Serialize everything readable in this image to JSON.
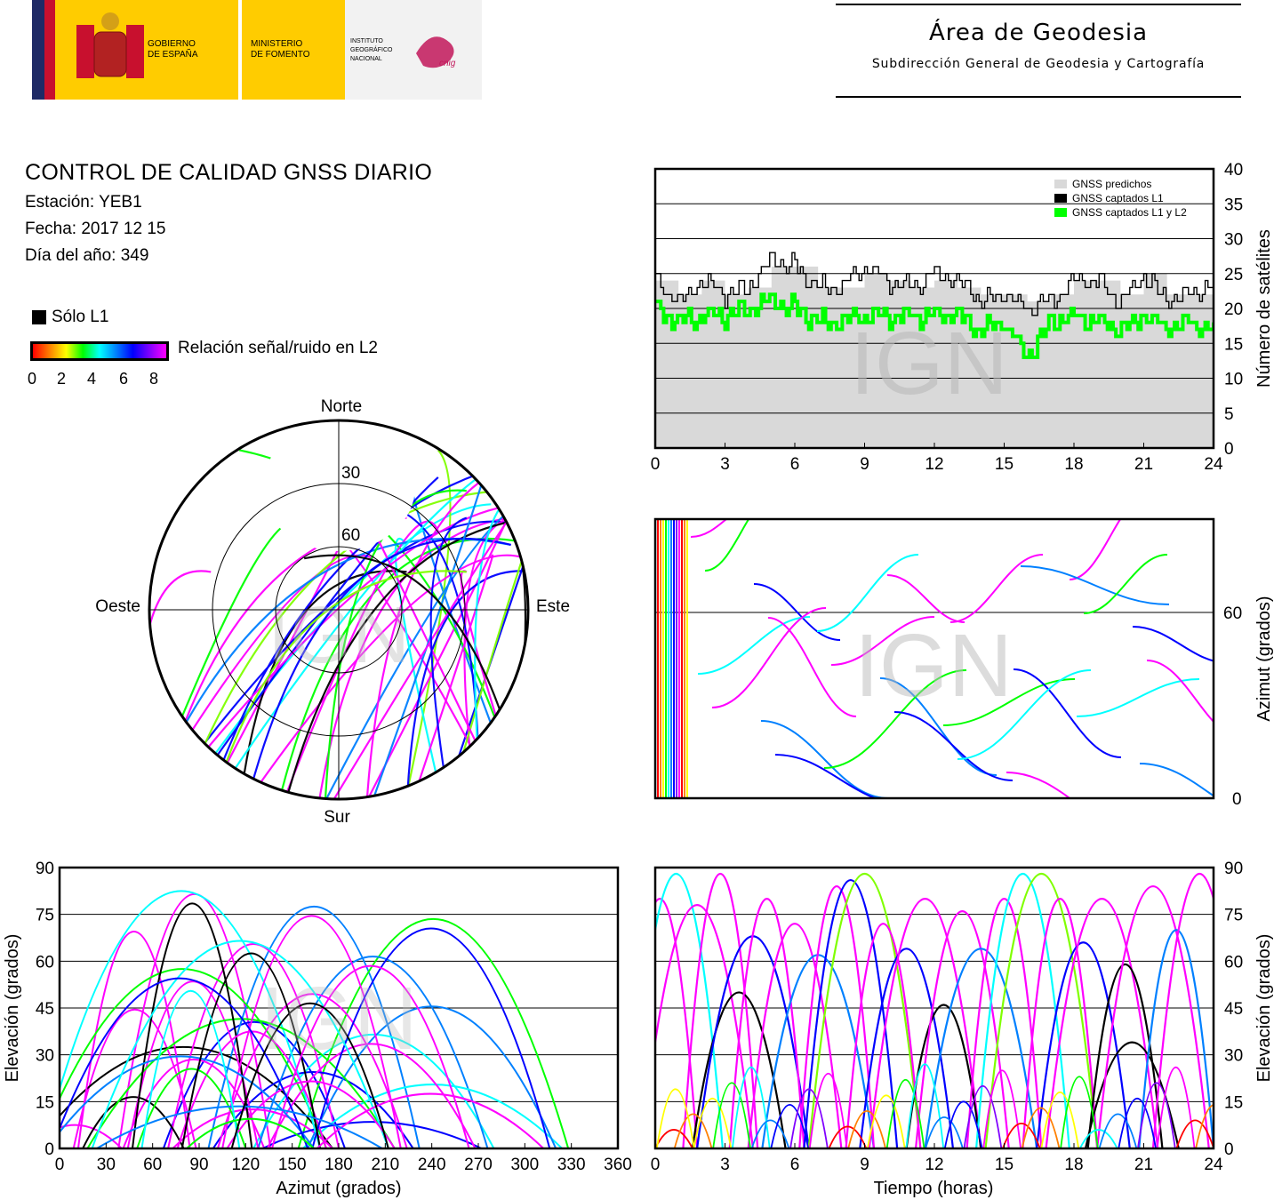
{
  "header": {
    "logos": {
      "gov_line1": "GOBIERNO",
      "gov_line2": "DE ESPAÑA",
      "min_line1": "MINISTERIO",
      "min_line2": "DE FOMENTO",
      "ign_line1": "INSTITUTO",
      "ign_line2": "GEOGRÁFICO",
      "ign_line3": "NACIONAL",
      "cnig": "cnig"
    },
    "area_title": "Área de Geodesia",
    "area_subtitle": "Subdirección General de Geodesia y Cartografía"
  },
  "info": {
    "title": "CONTROL DE CALIDAD GNSS DIARIO",
    "station": "Estación: YEB1",
    "date": "Fecha: 2017 12 15",
    "doy": "Día del año: 349"
  },
  "legend": {
    "l1_only": "Sólo L1",
    "snr_title": "Relación señal/ruido en L2",
    "snr_ticks": [
      "0",
      "2",
      "4",
      "6",
      "8"
    ]
  },
  "watermark": "IGN",
  "colors": {
    "predicted": "#d9d9d9",
    "l1": "#000000",
    "l1l2": "#00ff00",
    "snr_scale": [
      "#ff0000",
      "#ff8000",
      "#ffff00",
      "#00ff00",
      "#00ffff",
      "#0080ff",
      "#0000ff",
      "#8000ff",
      "#ff00ff"
    ]
  },
  "chart_data": [
    {
      "id": "satellites",
      "type": "area",
      "ylabel": "Número de satélites",
      "xlim": [
        0,
        24
      ],
      "ylim": [
        0,
        40
      ],
      "xticks": [
        "0",
        "3",
        "6",
        "9",
        "12",
        "15",
        "18",
        "21",
        "24"
      ],
      "yticks": [
        "0",
        "5",
        "10",
        "15",
        "20",
        "25",
        "30",
        "35",
        "40"
      ],
      "grid": true,
      "legend_position": "top-right",
      "x": [
        0,
        1,
        2,
        3,
        4,
        5,
        6,
        7,
        8,
        9,
        10,
        11,
        12,
        13,
        14,
        15,
        16,
        17,
        18,
        19,
        20,
        21,
        22,
        23,
        24
      ],
      "series": [
        {
          "name": "GNSS predichos",
          "values": [
            24,
            22,
            24,
            22,
            23,
            26,
            26,
            23,
            23,
            25,
            24,
            23,
            24,
            23,
            22,
            22,
            21,
            22,
            24,
            24,
            22,
            25,
            22,
            22,
            24
          ]
        },
        {
          "name": "GNSS captados L1",
          "values": [
            24,
            21,
            24,
            22,
            23,
            27,
            26,
            23,
            23,
            26,
            24,
            23,
            25,
            24,
            21,
            22,
            20,
            21,
            24,
            24,
            21,
            25,
            21,
            22,
            23
          ]
        },
        {
          "name": "GNSS captados L1 y L2",
          "values": [
            20,
            18,
            19,
            19,
            20,
            21,
            20,
            18,
            18,
            19,
            19,
            19,
            19,
            19,
            17,
            18,
            13,
            18,
            19,
            18,
            17,
            19,
            17,
            18,
            17
          ]
        }
      ]
    },
    {
      "id": "sky",
      "type": "scatter",
      "north": "Norte",
      "south": "Sur",
      "west": "Oeste",
      "east": "Este",
      "elev_rings": [
        "30",
        "60"
      ]
    },
    {
      "id": "azimuth",
      "type": "scatter",
      "ylabel": "Azimut (grados)",
      "yticks": [
        "0",
        "60"
      ],
      "ylim": [
        0,
        90
      ]
    },
    {
      "id": "elev_az",
      "type": "scatter",
      "xlabel": "Azimut (grados)",
      "ylabel": "Elevación (grados)",
      "xlim": [
        0,
        360
      ],
      "ylim": [
        0,
        90
      ],
      "xticks": [
        "0",
        "30",
        "60",
        "90",
        "120",
        "150",
        "180",
        "210",
        "240",
        "270",
        "300",
        "330",
        "360"
      ],
      "yticks": [
        "0",
        "15",
        "30",
        "45",
        "60",
        "75",
        "90"
      ],
      "grid": true
    },
    {
      "id": "elev_time",
      "type": "line",
      "xlabel": "Tiempo (horas)",
      "ylabel": "Elevación (grados)",
      "xlim": [
        0,
        24
      ],
      "ylim": [
        0,
        90
      ],
      "xticks": [
        "0",
        "3",
        "6",
        "9",
        "12",
        "15",
        "18",
        "21",
        "24"
      ],
      "yticks": [
        "0",
        "15",
        "30",
        "45",
        "60",
        "75",
        "90"
      ],
      "grid": true,
      "peaks": [
        {
          "t": 0.2,
          "el": 80,
          "c": "#ff00ff"
        },
        {
          "t": 0.9,
          "el": 88,
          "c": "#00ffff"
        },
        {
          "t": 1.8,
          "el": 78,
          "c": "#ff00ff"
        },
        {
          "t": 2.8,
          "el": 88,
          "c": "#ff00ff"
        },
        {
          "t": 3.6,
          "el": 50,
          "c": "#000000"
        },
        {
          "t": 4.2,
          "el": 68,
          "c": "#0000ff"
        },
        {
          "t": 4.8,
          "el": 80,
          "c": "#ff00ff"
        },
        {
          "t": 6.0,
          "el": 72,
          "c": "#ff00ff"
        },
        {
          "t": 7.0,
          "el": 62,
          "c": "#0080ff"
        },
        {
          "t": 7.8,
          "el": 84,
          "c": "#ff00ff"
        },
        {
          "t": 8.4,
          "el": 86,
          "c": "#0000ff"
        },
        {
          "t": 9.0,
          "el": 88,
          "c": "#80ff00"
        },
        {
          "t": 9.8,
          "el": 72,
          "c": "#ff00ff"
        },
        {
          "t": 10.8,
          "el": 64,
          "c": "#0000ff"
        },
        {
          "t": 11.6,
          "el": 80,
          "c": "#ff00ff"
        },
        {
          "t": 12.4,
          "el": 46,
          "c": "#000000"
        },
        {
          "t": 13.2,
          "el": 76,
          "c": "#ff00ff"
        },
        {
          "t": 14.0,
          "el": 64,
          "c": "#0080ff"
        },
        {
          "t": 15.0,
          "el": 80,
          "c": "#ff00ff"
        },
        {
          "t": 15.8,
          "el": 88,
          "c": "#00ffff"
        },
        {
          "t": 16.6,
          "el": 88,
          "c": "#80ff00"
        },
        {
          "t": 17.4,
          "el": 80,
          "c": "#ff00ff"
        },
        {
          "t": 18.4,
          "el": 66,
          "c": "#0000ff"
        },
        {
          "t": 19.2,
          "el": 80,
          "c": "#ff00ff"
        },
        {
          "t": 20.2,
          "el": 59,
          "c": "#000000"
        },
        {
          "t": 20.5,
          "el": 34,
          "c": "#000000"
        },
        {
          "t": 21.4,
          "el": 84,
          "c": "#ff00ff"
        },
        {
          "t": 22.4,
          "el": 70,
          "c": "#0080ff"
        },
        {
          "t": 23.4,
          "el": 88,
          "c": "#ff00ff"
        }
      ]
    }
  ]
}
